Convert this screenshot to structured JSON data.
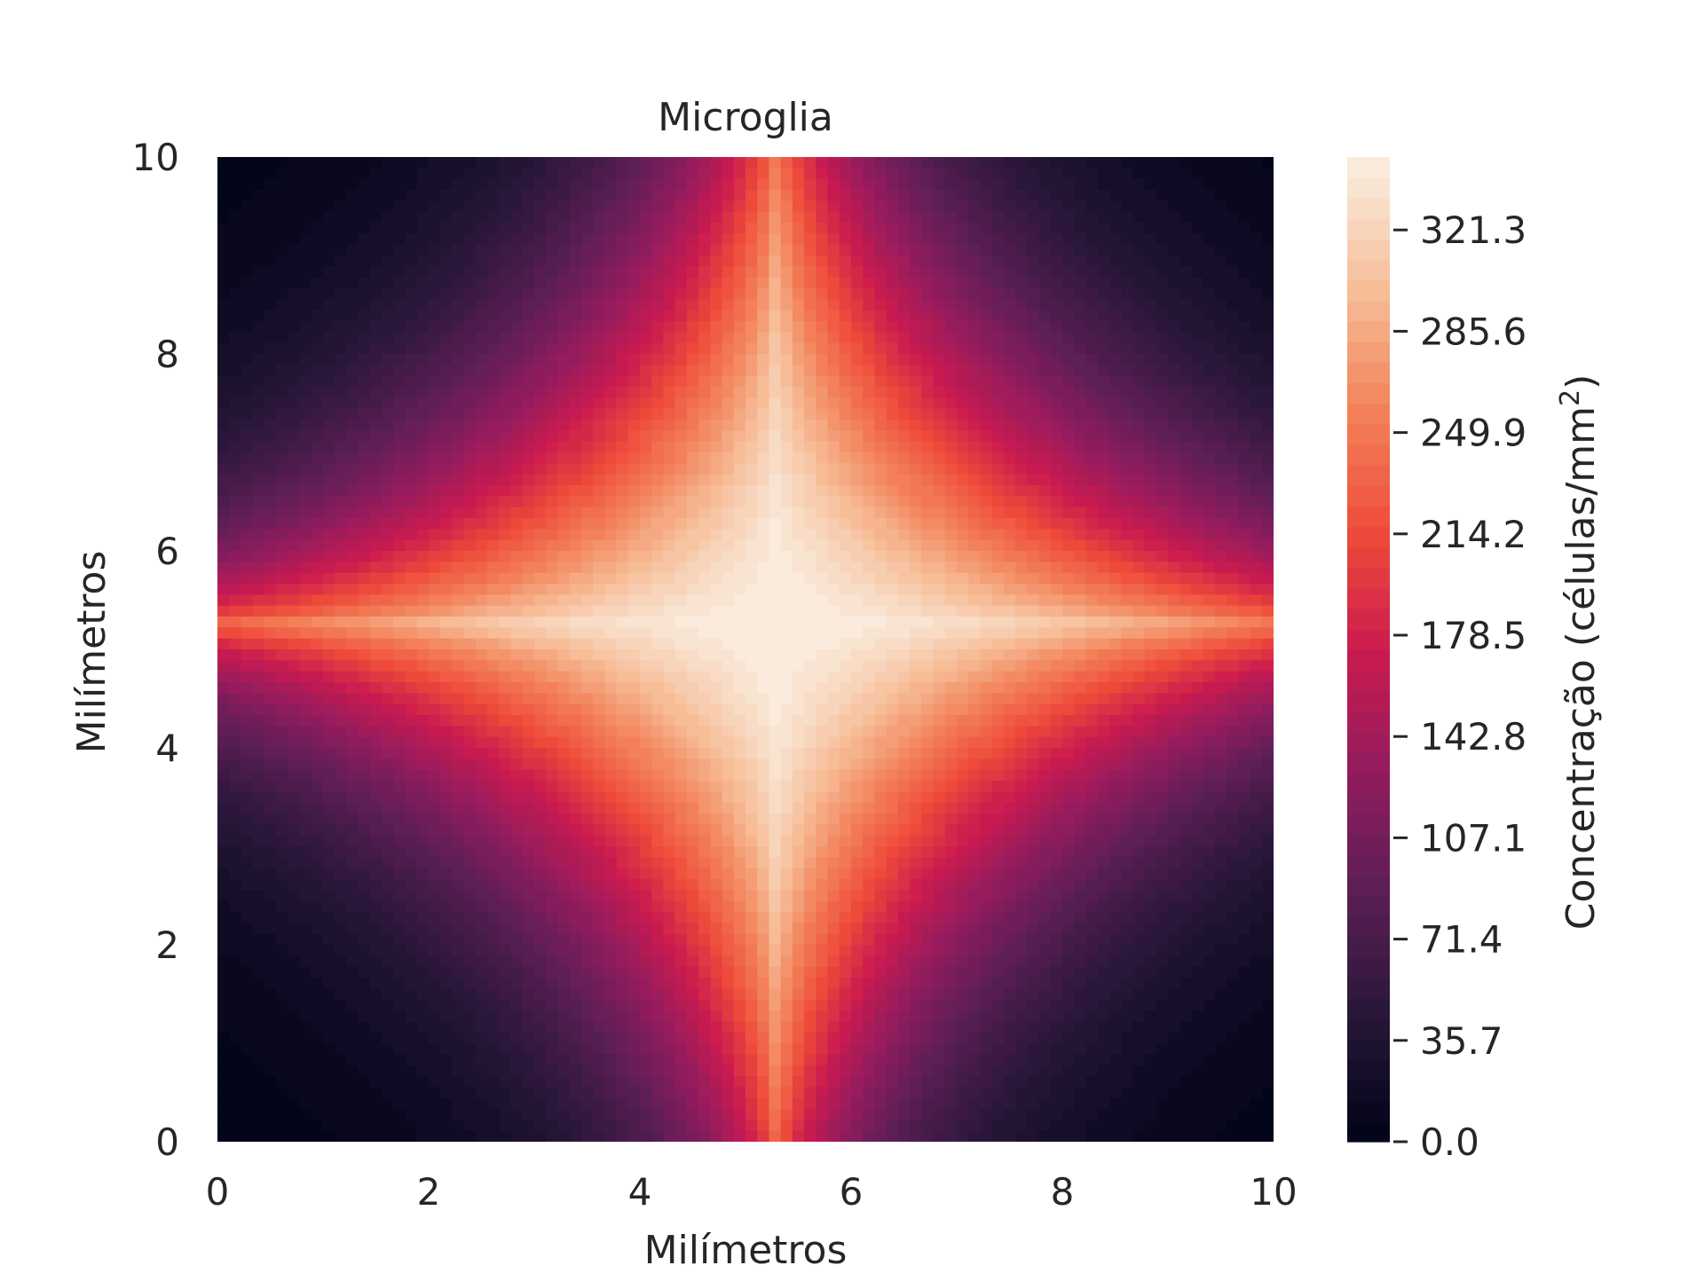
{
  "chart_data": {
    "type": "heatmap",
    "title": "Microglia",
    "xlabel": "Milímetros",
    "ylabel": "Milímetros",
    "xlim": [
      0,
      10
    ],
    "ylim": [
      0,
      10
    ],
    "x_ticks": [
      0,
      2,
      4,
      6,
      8,
      10
    ],
    "y_ticks": [
      0,
      2,
      4,
      6,
      8,
      10
    ],
    "colormap": "rocket",
    "peak_location": [
      5.3,
      5.25
    ],
    "color_min": 0.0,
    "color_max": 347,
    "colorbar": {
      "label": "Concentração (células/mm²)",
      "ticks": [
        0.0,
        35.7,
        71.4,
        107.1,
        142.8,
        178.5,
        214.2,
        249.9,
        285.6,
        321.3
      ],
      "tick_labels": [
        "0.0",
        "35.7",
        "71.4",
        "107.1",
        "142.8",
        "178.5",
        "214.2",
        "249.9",
        "285.6",
        "321.3"
      ]
    },
    "grid": false
  }
}
